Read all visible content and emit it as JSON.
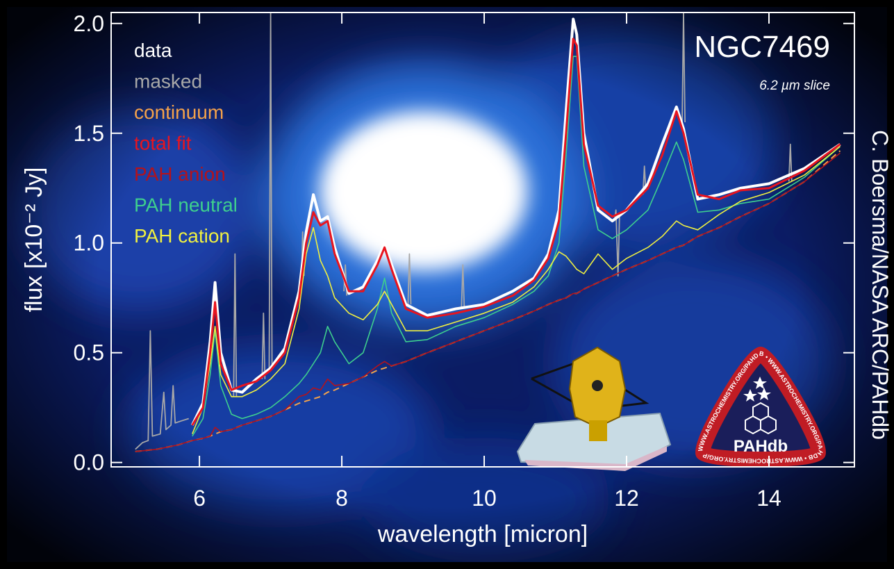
{
  "chart_data": {
    "type": "line",
    "title": "NGC7469",
    "subtitle": "6.2 µm slice",
    "xlabel": "wavelength [micron]",
    "ylabel": "flux [x10⁻² Jy]",
    "credit": "C. Boersma/NASA ARC/PAHdb",
    "xlim": [
      4.76,
      15.2
    ],
    "ylim": [
      -0.02,
      2.05
    ],
    "xticks": [
      6,
      8,
      10,
      12,
      14
    ],
    "yticks": [
      {
        "value": 0,
        "label": "0.0"
      },
      0.5,
      {
        "value": 1,
        "label": "1.0"
      },
      1.5,
      {
        "value": 2,
        "label": "2.0"
      }
    ],
    "x": [
      5.1,
      5.4,
      5.7,
      5.9,
      6.05,
      6.15,
      6.22,
      6.3,
      6.45,
      6.6,
      6.8,
      7.0,
      7.2,
      7.4,
      7.5,
      7.6,
      7.7,
      7.8,
      7.9,
      8.1,
      8.3,
      8.5,
      8.6,
      8.7,
      8.9,
      9.2,
      9.6,
      10.0,
      10.4,
      10.7,
      10.9,
      11.05,
      11.15,
      11.25,
      11.3,
      11.4,
      11.6,
      11.8,
      12.0,
      12.3,
      12.5,
      12.7,
      12.8,
      13.0,
      13.3,
      13.6,
      14.0,
      14.5,
      15.0
    ],
    "series": [
      {
        "name": "data",
        "color": "#ffffff",
        "values": [
          null,
          null,
          null,
          0.17,
          0.27,
          0.55,
          0.82,
          0.5,
          0.33,
          0.32,
          0.38,
          0.43,
          0.52,
          0.78,
          1.05,
          1.22,
          1.1,
          1.12,
          0.98,
          0.77,
          0.8,
          0.92,
          1.0,
          0.9,
          0.72,
          0.67,
          0.7,
          0.72,
          0.78,
          0.84,
          0.95,
          1.15,
          1.6,
          2.02,
          1.95,
          1.5,
          1.15,
          1.1,
          1.15,
          1.27,
          1.45,
          1.62,
          1.52,
          1.2,
          1.22,
          1.25,
          1.27,
          1.34,
          1.45
        ]
      },
      {
        "name": "masked",
        "color": "#a8a8a8",
        "x": [
          5.1,
          5.2,
          5.28,
          5.31,
          5.34,
          5.45,
          5.5,
          5.53,
          5.6,
          5.63,
          5.66,
          5.75,
          5.85,
          5.86,
          6.48,
          6.5,
          6.52,
          6.53,
          6.88,
          6.9,
          6.92,
          6.93,
          6.98,
          7.0,
          7.02,
          7.03,
          7.43,
          7.45,
          7.47,
          7.48,
          8.03,
          8.05,
          8.07,
          8.08,
          8.93,
          8.95,
          8.97,
          8.98,
          9.68,
          9.7,
          9.72,
          9.73,
          11.83,
          11.85,
          11.88,
          11.9,
          11.91,
          12.23,
          12.25,
          12.27,
          12.28,
          12.78,
          12.8,
          12.82,
          12.83,
          14.28,
          14.3,
          14.32
        ],
        "values": [
          0.06,
          0.09,
          0.1,
          0.6,
          0.12,
          0.13,
          0.32,
          0.15,
          0.17,
          0.35,
          0.18,
          0.19,
          0.2,
          null,
          0.3,
          0.95,
          0.3,
          null,
          0.38,
          0.68,
          0.38,
          null,
          0.42,
          2.05,
          0.44,
          null,
          0.78,
          1.05,
          0.85,
          null,
          0.78,
          0.9,
          0.76,
          null,
          0.72,
          0.95,
          0.72,
          null,
          0.7,
          0.9,
          0.7,
          null,
          1.1,
          1.15,
          0.85,
          1.12,
          null,
          1.22,
          1.35,
          1.24,
          null,
          1.55,
          2.05,
          1.55,
          null,
          1.28,
          1.45,
          1.28
        ]
      },
      {
        "name": "continuum",
        "color": "#f5a24a",
        "dashed": true,
        "values": [
          0.05,
          0.06,
          0.08,
          0.1,
          0.11,
          0.12,
          0.13,
          0.14,
          0.15,
          0.17,
          0.19,
          0.21,
          0.24,
          0.27,
          0.28,
          0.29,
          0.3,
          0.32,
          0.33,
          0.36,
          0.39,
          0.42,
          0.43,
          0.44,
          0.46,
          0.5,
          0.55,
          0.6,
          0.65,
          0.69,
          0.72,
          0.74,
          0.75,
          0.77,
          0.77,
          0.79,
          0.82,
          0.85,
          0.88,
          0.92,
          0.95,
          0.98,
          0.99,
          1.03,
          1.07,
          1.12,
          1.18,
          1.28,
          1.42
        ]
      },
      {
        "name": "total fit",
        "color": "#e8141e",
        "values": [
          null,
          null,
          null,
          0.17,
          0.25,
          0.5,
          0.73,
          0.45,
          0.33,
          0.35,
          0.37,
          0.42,
          0.5,
          0.75,
          1.0,
          1.14,
          1.08,
          1.1,
          0.95,
          0.78,
          0.78,
          0.9,
          0.98,
          0.88,
          0.7,
          0.66,
          0.68,
          0.71,
          0.76,
          0.83,
          0.93,
          1.1,
          1.5,
          1.93,
          1.9,
          1.45,
          1.17,
          1.12,
          1.15,
          1.25,
          1.4,
          1.6,
          1.5,
          1.22,
          1.2,
          1.24,
          1.25,
          1.33,
          1.45
        ]
      },
      {
        "name": "PAH anion",
        "color": "#b5121b",
        "values": [
          0.05,
          0.06,
          0.08,
          0.1,
          0.11,
          0.12,
          0.16,
          0.14,
          0.15,
          0.17,
          0.19,
          0.21,
          0.24,
          0.3,
          0.31,
          0.34,
          0.33,
          0.38,
          0.35,
          0.36,
          0.39,
          0.44,
          0.46,
          0.44,
          0.46,
          0.5,
          0.55,
          0.6,
          0.65,
          0.69,
          0.72,
          0.74,
          0.75,
          0.77,
          0.77,
          0.79,
          0.82,
          0.85,
          0.88,
          0.92,
          0.95,
          0.98,
          0.99,
          1.03,
          1.07,
          1.12,
          1.18,
          1.28,
          1.41
        ]
      },
      {
        "name": "PAH neutral",
        "color": "#3ecf8e",
        "values": [
          null,
          null,
          null,
          0.12,
          0.2,
          0.4,
          0.6,
          0.35,
          0.22,
          0.2,
          0.22,
          0.25,
          0.3,
          0.36,
          0.4,
          0.45,
          0.5,
          0.62,
          0.55,
          0.45,
          0.5,
          0.7,
          0.84,
          0.68,
          0.55,
          0.56,
          0.62,
          0.66,
          0.72,
          0.78,
          0.85,
          1.0,
          1.4,
          1.85,
          1.85,
          1.35,
          1.06,
          1.02,
          1.06,
          1.15,
          1.3,
          1.46,
          1.38,
          1.14,
          1.15,
          1.18,
          1.2,
          1.3,
          1.44
        ]
      },
      {
        "name": "PAH cation",
        "color": "#f0f040",
        "values": [
          null,
          null,
          null,
          0.13,
          0.25,
          0.45,
          0.62,
          0.4,
          0.3,
          0.3,
          0.33,
          0.38,
          0.45,
          0.7,
          0.95,
          1.07,
          0.92,
          0.85,
          0.75,
          0.68,
          0.65,
          0.72,
          0.78,
          0.72,
          0.6,
          0.6,
          0.64,
          0.68,
          0.73,
          0.8,
          0.88,
          0.96,
          0.94,
          0.9,
          0.88,
          0.86,
          0.95,
          0.88,
          0.93,
          0.98,
          1.03,
          1.1,
          1.08,
          1.06,
          1.13,
          1.19,
          1.23,
          1.31,
          1.44
        ]
      }
    ]
  },
  "logo": {
    "name": "PAHdb",
    "ring": "WWW.ASTROCHEMISTRY.ORG/PAHDB • WWW.ASTROCHEMISTRY.ORG/PAHDB • WWW.ASTROCHEMISTRY.ORG/PAHDB •"
  }
}
